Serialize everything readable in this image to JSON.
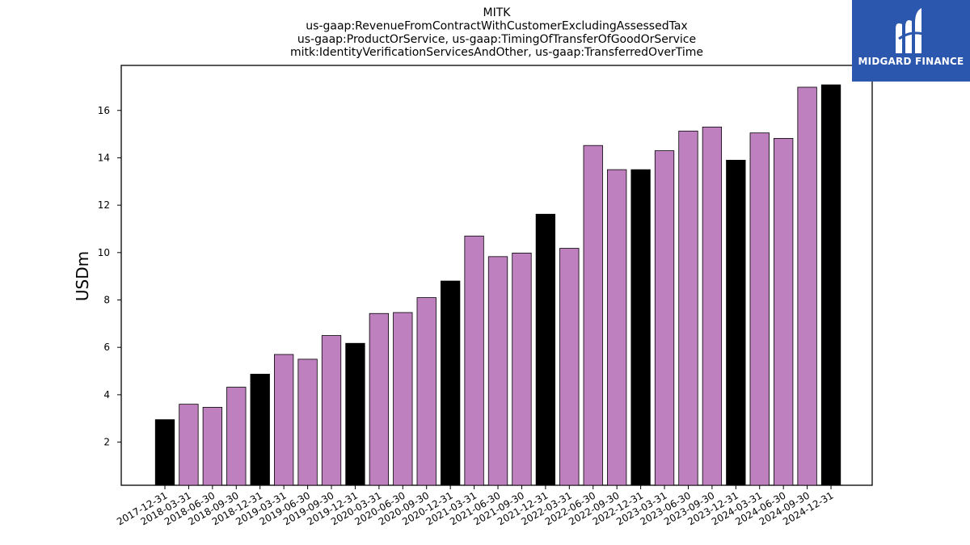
{
  "chart_data": {
    "type": "bar",
    "title": [
      "MITK",
      "us-gaap:RevenueFromContractWithCustomerExcludingAssessedTax",
      "us-gaap:ProductOrService, us-gaap:TimingOfTransferOfGoodOrService",
      "mitk:IdentityVerificationServicesAndOther, us-gaap:TransferredOverTime"
    ],
    "ylabel": "USDm",
    "xlabel": "",
    "ylim": [
      0.18,
      17.9
    ],
    "yticks": [
      2,
      4,
      6,
      8,
      10,
      12,
      14,
      16
    ],
    "categories": [
      "2017-12-31",
      "2018-03-31",
      "2018-06-30",
      "2018-09-30",
      "2018-12-31",
      "2019-03-31",
      "2019-06-30",
      "2019-09-30",
      "2019-12-31",
      "2020-03-31",
      "2020-06-30",
      "2020-09-30",
      "2020-12-31",
      "2021-03-31",
      "2021-06-30",
      "2021-09-30",
      "2021-12-31",
      "2022-03-31",
      "2022-06-30",
      "2022-09-30",
      "2022-12-31",
      "2023-03-31",
      "2023-06-30",
      "2023-09-30",
      "2023-12-31",
      "2024-03-31",
      "2024-06-30",
      "2024-09-30",
      "2024-12-31"
    ],
    "values": [
      2.95,
      3.6,
      3.47,
      4.32,
      4.87,
      5.7,
      5.5,
      6.5,
      6.17,
      7.43,
      7.47,
      8.1,
      8.8,
      10.7,
      9.83,
      9.98,
      11.62,
      10.18,
      14.52,
      13.5,
      13.5,
      14.3,
      15.13,
      15.3,
      13.9,
      15.05,
      14.82,
      16.98,
      17.08
    ],
    "bar_colors": {
      "quarter": "#bf80bf",
      "year_end": "#000000",
      "edge": "#000000"
    },
    "year_end_pattern": "bars ending -12-31 are black"
  },
  "logo": {
    "text": "MIDGARD FINANCE",
    "background": "#2c57ae"
  }
}
